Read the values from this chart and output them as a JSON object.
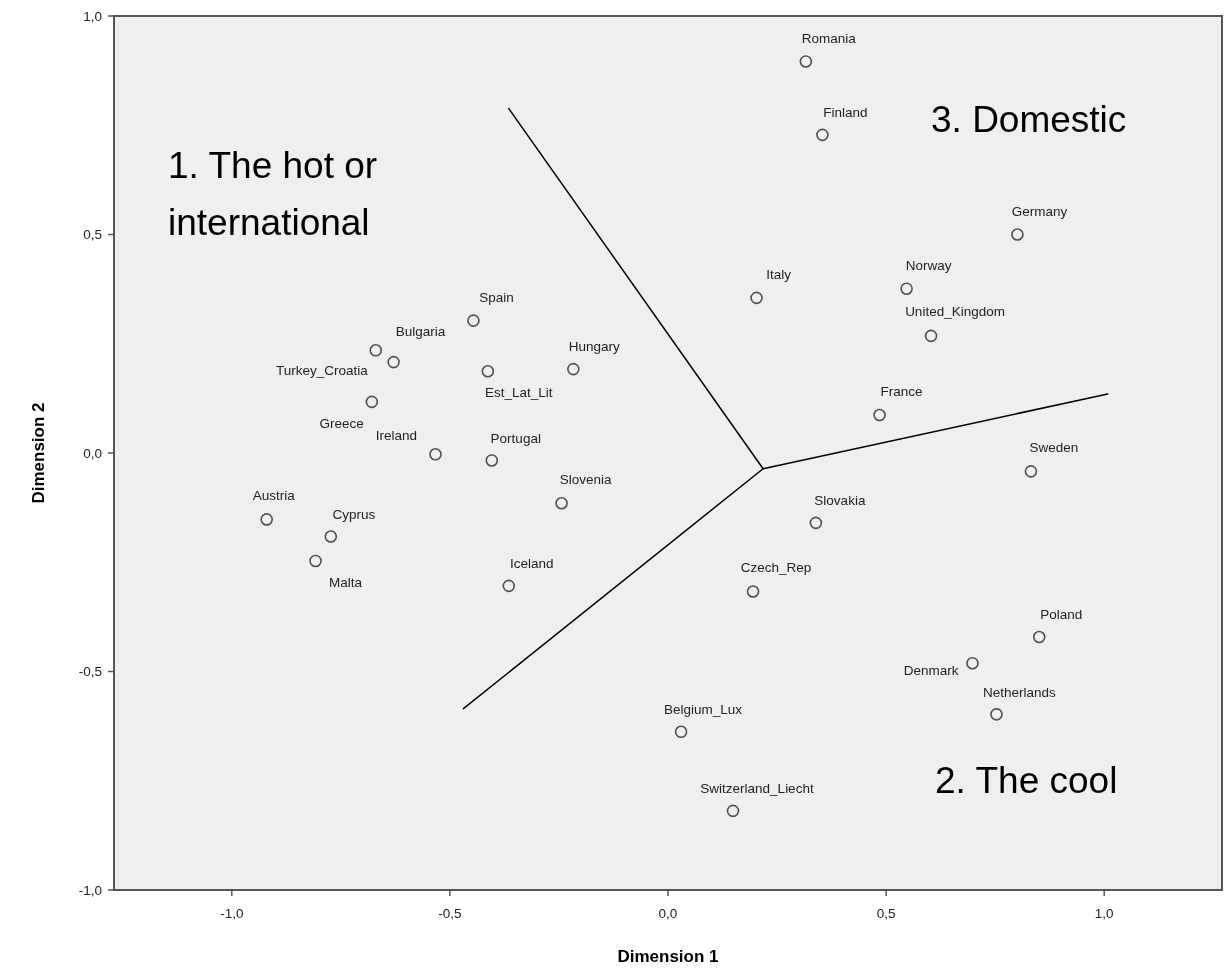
{
  "chart_data": {
    "type": "scatter",
    "xlabel": "Dimension 1",
    "ylabel": "Dimension 2",
    "xlim": [
      -1.27,
      1.27
    ],
    "ylim": [
      -1.0,
      1.0
    ],
    "xticks": [
      {
        "value": -1,
        "label": "-1,0"
      },
      {
        "value": -0.5,
        "label": "-0,5"
      },
      {
        "value": 0,
        "label": "0,0"
      },
      {
        "value": 0.5,
        "label": "0,5"
      },
      {
        "value": 1,
        "label": "1,0"
      }
    ],
    "yticks": [
      {
        "value": -1,
        "label": "-1,0"
      },
      {
        "value": -0.5,
        "label": "-0,5"
      },
      {
        "value": 0,
        "label": "0,0"
      },
      {
        "value": 0.5,
        "label": "0,5"
      },
      {
        "value": 1,
        "label": "1,0"
      }
    ],
    "grid": false,
    "marker": "circle",
    "series": [
      {
        "color": "#505050",
        "x": [
          0.316,
          0.354,
          0.801,
          0.203,
          0.547,
          0.603,
          0.485,
          0.832,
          0.339,
          0.195,
          0.851,
          0.698,
          0.753,
          0.03,
          0.149,
          -0.446,
          -0.629,
          -0.67,
          -0.413,
          -0.217,
          -0.679,
          -0.533,
          -0.404,
          -0.244,
          -0.92,
          -0.773,
          -0.808,
          -0.365
        ],
        "values": [
          0.896,
          0.728,
          0.5,
          0.355,
          0.376,
          0.268,
          0.087,
          -0.042,
          -0.16,
          -0.317,
          -0.421,
          -0.481,
          -0.598,
          -0.638,
          -0.819,
          0.303,
          0.208,
          0.235,
          0.187,
          0.192,
          0.117,
          -0.003,
          -0.017,
          -0.115,
          -0.152,
          -0.191,
          -0.247,
          -0.304
        ]
      },
      {
        "type": "line",
        "color": "#000000",
        "marker": "none",
        "line_style": "solid",
        "x": [
          -0.365,
          0.218,
          1.008
        ],
        "values": [
          0.788,
          -0.036,
          0.135
        ]
      },
      {
        "type": "line",
        "color": "#000000",
        "marker": "none",
        "line_style": "solid",
        "x": [
          0.218,
          -0.469
        ],
        "values": [
          -0.036,
          -0.585
        ]
      }
    ],
    "annotations": [
      "1. The hot or international",
      "3. Domestic",
      "2. The cool",
      {
        "text": "Romania",
        "x": 0.316,
        "y": 0.896
      },
      {
        "text": "Finland",
        "x": 0.354,
        "y": 0.728
      },
      {
        "text": "Germany",
        "x": 0.801,
        "y": 0.5
      },
      {
        "text": "Italy",
        "x": 0.203,
        "y": 0.355
      },
      {
        "text": "Norway",
        "x": 0.547,
        "y": 0.376
      },
      {
        "text": "United_Kingdom",
        "x": 0.603,
        "y": 0.268
      },
      {
        "text": "France",
        "x": 0.485,
        "y": 0.087
      },
      {
        "text": "Sweden",
        "x": 0.832,
        "y": -0.042
      },
      {
        "text": "Slovakia",
        "x": 0.339,
        "y": -0.16
      },
      {
        "text": "Czech_Rep",
        "x": 0.195,
        "y": -0.317
      },
      {
        "text": "Poland",
        "x": 0.851,
        "y": -0.421
      },
      {
        "text": "Denmark",
        "x": 0.698,
        "y": -0.481
      },
      {
        "text": "Netherlands",
        "x": 0.753,
        "y": -0.598
      },
      {
        "text": "Belgium_Lux",
        "x": 0.03,
        "y": -0.638
      },
      {
        "text": "Switzerland_Liecht",
        "x": 0.149,
        "y": -0.819
      },
      {
        "text": "Spain",
        "x": -0.446,
        "y": 0.303
      },
      {
        "text": "Bulgaria",
        "x": -0.629,
        "y": 0.208
      },
      {
        "text": "Turkey_Croatia",
        "x": -0.67,
        "y": 0.235
      },
      {
        "text": "Est_Lat_Lit",
        "x": -0.413,
        "y": 0.187
      },
      {
        "text": "Hungary",
        "x": -0.217,
        "y": 0.192
      },
      {
        "text": "Greece",
        "x": -0.679,
        "y": 0.117
      },
      {
        "text": "Ireland",
        "x": -0.533,
        "y": -0.003
      },
      {
        "text": "Portugal",
        "x": -0.404,
        "y": -0.017
      },
      {
        "text": "Slovenia",
        "x": -0.244,
        "y": -0.115
      },
      {
        "text": "Austria",
        "x": -0.92,
        "y": -0.152
      },
      {
        "text": "Cyprus",
        "x": -0.773,
        "y": -0.191
      },
      {
        "text": "Malta",
        "x": -0.808,
        "y": -0.247
      },
      {
        "text": "Iceland",
        "x": -0.365,
        "y": -0.304
      }
    ]
  }
}
